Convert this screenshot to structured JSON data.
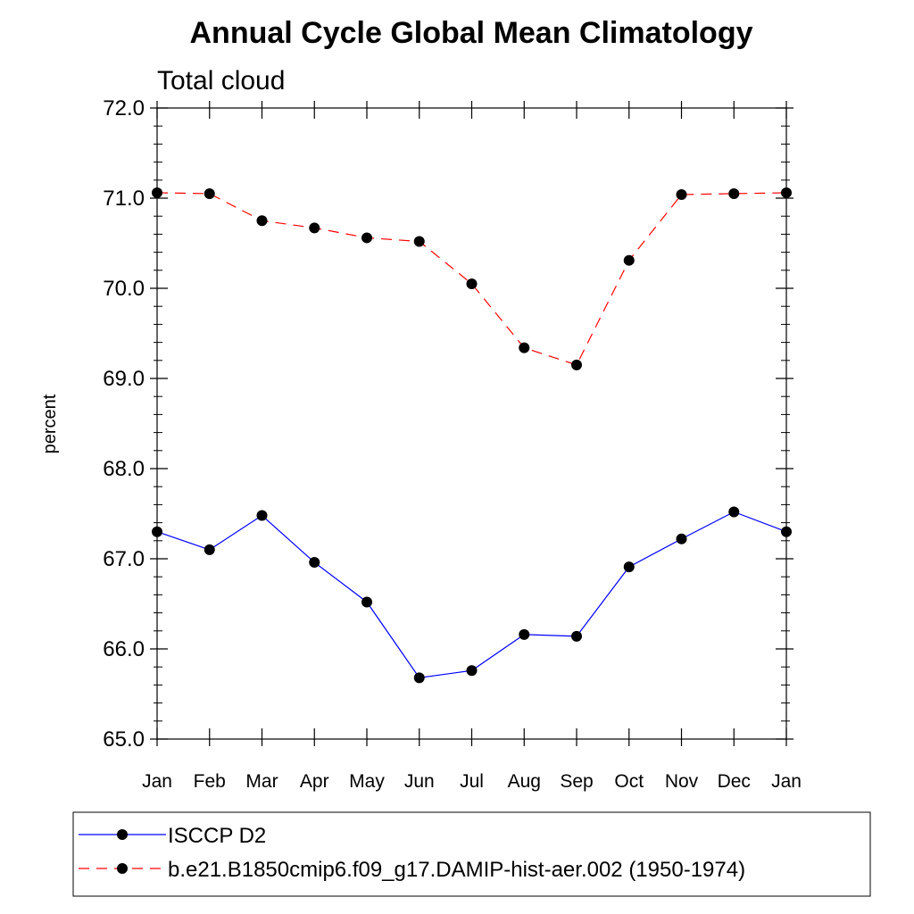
{
  "chart_data": {
    "type": "line",
    "title": "Annual Cycle Global Mean Climatology",
    "subtitle": "Total cloud",
    "xlabel": "",
    "ylabel": "percent",
    "categories": [
      "Jan",
      "Feb",
      "Mar",
      "Apr",
      "May",
      "Jun",
      "Jul",
      "Aug",
      "Sep",
      "Oct",
      "Nov",
      "Dec",
      "Jan"
    ],
    "ylim": [
      65.0,
      72.0
    ],
    "yticks": [
      "65.0",
      "66.0",
      "67.0",
      "68.0",
      "69.0",
      "70.0",
      "71.0",
      "72.0"
    ],
    "legend_position": "bottom",
    "grid": false,
    "series": [
      {
        "name": "ISCCP D2",
        "color": "#0000ff",
        "line_style": "solid",
        "marker": "circle",
        "values": [
          67.3,
          67.1,
          67.48,
          66.96,
          66.52,
          65.68,
          65.76,
          66.16,
          66.14,
          66.91,
          67.22,
          67.52,
          67.3
        ]
      },
      {
        "name": "b.e21.B1850cmip6.f09_g17.DAMIP-hist-aer.002 (1950-1974)",
        "color": "#ff0000",
        "line_style": "dashed",
        "marker": "circle",
        "values": [
          71.06,
          71.05,
          70.75,
          70.67,
          70.56,
          70.52,
          70.05,
          69.34,
          69.15,
          70.31,
          71.04,
          71.05,
          71.06
        ]
      }
    ]
  }
}
